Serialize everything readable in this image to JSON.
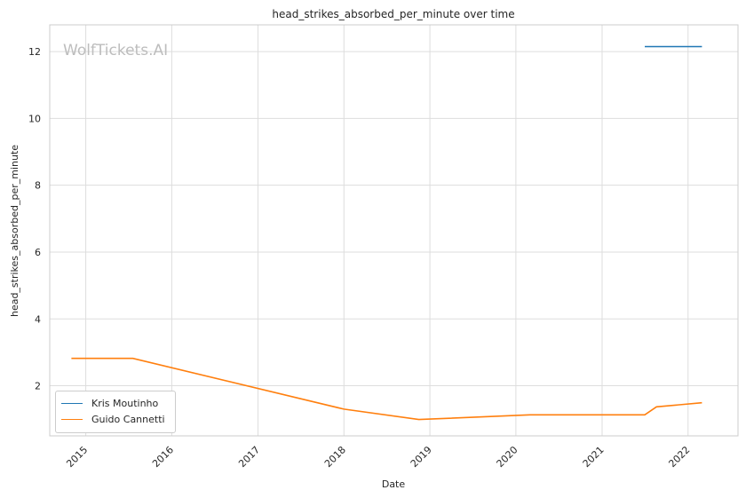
{
  "watermark": "WolfTickets.AI",
  "chart_data": {
    "type": "line",
    "title": "head_strikes_absorbed_per_minute over time",
    "xlabel": "Date",
    "ylabel": "head_strikes_absorbed_per_minute",
    "x_ticks": [
      "2015",
      "2016",
      "2017",
      "2018",
      "2019",
      "2020",
      "2021",
      "2022"
    ],
    "y_ticks": [
      2,
      4,
      6,
      8,
      10,
      12
    ],
    "xlim": [
      "2014-08-01",
      "2022-08-01"
    ],
    "ylim": [
      0.5,
      12.8
    ],
    "grid": true,
    "legend_position": "lower left",
    "series": [
      {
        "name": "Kris Moutinho",
        "color": "#1f77b4",
        "points": [
          {
            "x": "2021-07-01",
            "y": 12.15
          },
          {
            "x": "2022-03-01",
            "y": 12.15
          }
        ]
      },
      {
        "name": "Guido Cannetti",
        "color": "#ff7f0e",
        "points": [
          {
            "x": "2014-11-01",
            "y": 2.82
          },
          {
            "x": "2015-07-20",
            "y": 2.82
          },
          {
            "x": "2018-01-01",
            "y": 1.3
          },
          {
            "x": "2018-11-15",
            "y": 0.99
          },
          {
            "x": "2020-03-01",
            "y": 1.13
          },
          {
            "x": "2021-07-01",
            "y": 1.13
          },
          {
            "x": "2021-08-20",
            "y": 1.37
          },
          {
            "x": "2022-03-01",
            "y": 1.49
          }
        ]
      }
    ]
  }
}
